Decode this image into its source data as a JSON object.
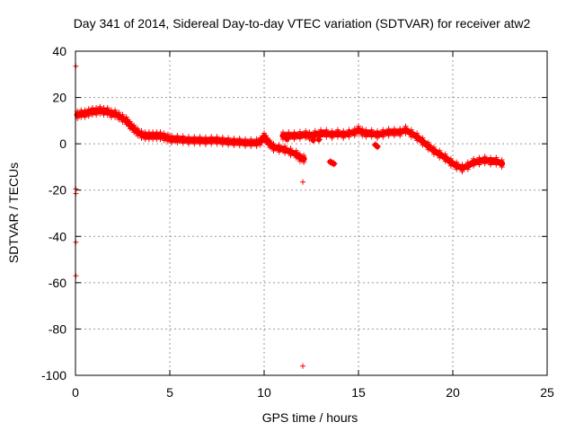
{
  "chart_data": {
    "type": "scatter",
    "title": "Day 341 of 2014, Sidereal Day-to-day VTEC variation (SDTVAR) for receiver atw2",
    "xlabel": "GPS time / hours",
    "ylabel": "SDTVAR / TECUs",
    "xlim": [
      0,
      25
    ],
    "ylim": [
      -100,
      40
    ],
    "xticks": [
      0,
      5,
      10,
      15,
      20,
      25
    ],
    "yticks": [
      -100,
      -80,
      -60,
      -40,
      -20,
      0,
      20,
      40
    ],
    "grid": true,
    "marker": "+",
    "color": "#ff0000",
    "main_band": [
      [
        0.1,
        12.5
      ],
      [
        0.3,
        13
      ],
      [
        0.5,
        13
      ],
      [
        0.7,
        13.5
      ],
      [
        0.9,
        14
      ],
      [
        1.1,
        14
      ],
      [
        1.3,
        14.5
      ],
      [
        1.5,
        14
      ],
      [
        1.7,
        14
      ],
      [
        1.9,
        13
      ],
      [
        2.1,
        13
      ],
      [
        2.3,
        12
      ],
      [
        2.5,
        11
      ],
      [
        2.7,
        10
      ],
      [
        2.9,
        8
      ],
      [
        3.1,
        6.5
      ],
      [
        3.3,
        5
      ],
      [
        3.5,
        4
      ],
      [
        3.7,
        3.5
      ],
      [
        3.9,
        3.5
      ],
      [
        4.1,
        3.5
      ],
      [
        4.3,
        3.5
      ],
      [
        4.5,
        3.5
      ],
      [
        4.7,
        3
      ],
      [
        4.9,
        2.5
      ],
      [
        5.1,
        2
      ],
      [
        5.4,
        2
      ],
      [
        5.7,
        1.8
      ],
      [
        6.0,
        1.5
      ],
      [
        6.3,
        1.5
      ],
      [
        6.6,
        1.5
      ],
      [
        6.9,
        1.3
      ],
      [
        7.2,
        1.5
      ],
      [
        7.5,
        1.5
      ],
      [
        7.8,
        1.2
      ],
      [
        8.1,
        1
      ],
      [
        8.4,
        0.8
      ],
      [
        8.7,
        0.8
      ],
      [
        9.0,
        0.5
      ],
      [
        9.3,
        0.5
      ],
      [
        9.6,
        0.5
      ],
      [
        9.8,
        1
      ],
      [
        10.0,
        3
      ],
      [
        10.1,
        2
      ],
      [
        10.3,
        0
      ],
      [
        10.5,
        -1.5
      ],
      [
        10.8,
        -2
      ],
      [
        11.1,
        -2.5
      ],
      [
        11.4,
        -3.5
      ],
      [
        11.7,
        -4.5
      ],
      [
        11.9,
        -6
      ],
      [
        12.1,
        -6.5
      ],
      [
        11.0,
        3.5
      ],
      [
        11.3,
        3.5
      ],
      [
        11.6,
        3.5
      ],
      [
        11.9,
        3.7
      ],
      [
        12.2,
        4
      ],
      [
        12.4,
        3.5
      ],
      [
        12.7,
        4
      ],
      [
        13.0,
        4.5
      ],
      [
        13.3,
        4.5
      ],
      [
        13.6,
        4
      ],
      [
        13.9,
        4.5
      ],
      [
        14.2,
        4
      ],
      [
        14.5,
        4.5
      ],
      [
        14.8,
        5
      ],
      [
        15.0,
        6
      ],
      [
        15.2,
        5
      ],
      [
        15.4,
        4.5
      ],
      [
        15.7,
        4.5
      ],
      [
        16.0,
        4
      ],
      [
        16.3,
        4.5
      ],
      [
        16.6,
        5
      ],
      [
        16.9,
        5
      ],
      [
        17.2,
        5
      ],
      [
        17.5,
        6
      ],
      [
        17.8,
        4.5
      ],
      [
        18.1,
        3
      ],
      [
        18.4,
        1
      ],
      [
        18.7,
        -1
      ],
      [
        19.0,
        -3
      ],
      [
        19.3,
        -4.5
      ],
      [
        19.6,
        -6
      ],
      [
        19.9,
        -8
      ],
      [
        20.2,
        -9.5
      ],
      [
        20.5,
        -10.5
      ],
      [
        20.8,
        -9.5
      ],
      [
        21.1,
        -8
      ],
      [
        21.4,
        -7.5
      ],
      [
        21.7,
        -7
      ],
      [
        22.0,
        -7.5
      ],
      [
        22.3,
        -7.5
      ],
      [
        22.6,
        -8.5
      ]
    ],
    "outliers": [
      [
        0.02,
        33.5
      ],
      [
        0.02,
        -19.5
      ],
      [
        0.02,
        -21.5
      ],
      [
        0.02,
        -42.5
      ],
      [
        0.02,
        -57
      ],
      [
        12.05,
        -16.5
      ],
      [
        12.05,
        -96
      ]
    ],
    "blob_points": [
      [
        13.6,
        -8.2
      ],
      [
        13.5,
        -7.8
      ],
      [
        13.7,
        -8.6
      ],
      [
        15.9,
        -0.5
      ],
      [
        16.0,
        -1.2
      ],
      [
        12.6,
        1.5
      ],
      [
        12.9,
        1.8
      ],
      [
        11.2,
        2
      ]
    ]
  }
}
